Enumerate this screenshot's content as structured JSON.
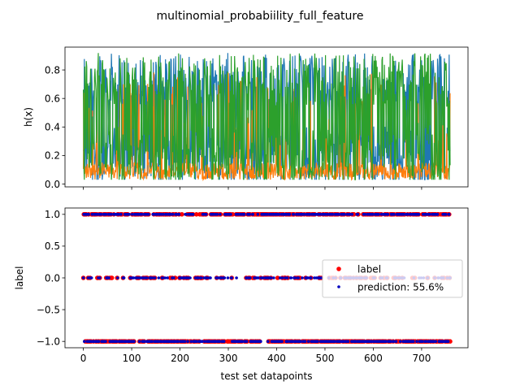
{
  "chart_data": [
    {
      "type": "line",
      "title": "multinomial_probabiility_full_feature",
      "xlabel": "",
      "ylabel": "h(x)",
      "xlim": [
        -38,
        796
      ],
      "ylim": [
        -0.02,
        0.96
      ],
      "x_ticks": [
        0,
        100,
        200,
        300,
        400,
        500,
        600,
        700
      ],
      "y_ticks": [
        0.0,
        0.2,
        0.4,
        0.6,
        0.8
      ],
      "y_tick_labels": [
        "0.0",
        "0.2",
        "0.4",
        "0.6",
        "0.8"
      ],
      "n_points": 760,
      "grid": false,
      "colors": [
        "#1f77b4",
        "#ff7f0e",
        "#2ca02c"
      ],
      "series": [
        {
          "range": [
            0.03,
            0.92
          ],
          "typical": 0.45,
          "color": "#1f77b4"
        },
        {
          "range": [
            0.03,
            0.82
          ],
          "typical": 0.18,
          "color": "#ff7f0e"
        },
        {
          "range": [
            0.03,
            0.92
          ],
          "typical": 0.5,
          "color": "#2ca02c"
        }
      ]
    },
    {
      "type": "scatter",
      "xlabel": "test set datapoints",
      "ylabel": "label",
      "xlim": [
        -38,
        796
      ],
      "ylim": [
        -1.1,
        1.1
      ],
      "x_ticks": [
        0,
        100,
        200,
        300,
        400,
        500,
        600,
        700
      ],
      "x_tick_labels": [
        "0",
        "100",
        "200",
        "300",
        "400",
        "500",
        "600",
        "700"
      ],
      "y_ticks": [
        1.0,
        0.5,
        0.0,
        -0.5,
        -1.0
      ],
      "y_tick_labels": [
        "1.0",
        "0.5",
        "0.0",
        "−0.5",
        "−1.0"
      ],
      "y_values": [
        -1,
        0,
        1
      ],
      "n_points": 760,
      "legend": {
        "placement": "center-right",
        "entries": [
          {
            "label": "label",
            "color": "#ff0000"
          },
          {
            "label": "prediction: 55.6%",
            "color": "#0000bf"
          }
        ]
      }
    }
  ]
}
